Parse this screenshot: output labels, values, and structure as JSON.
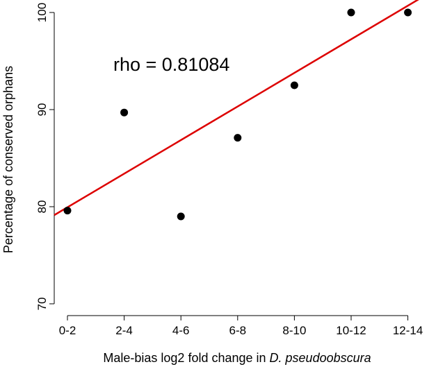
{
  "chart_data": {
    "type": "scatter",
    "title": "",
    "xlabel_prefix": "Male-bias log2 fold change in ",
    "xlabel_italic": "D. pseudoobscura",
    "ylabel": "Percentage of conserved orphans",
    "categories": [
      "0-2",
      "2-4",
      "4-6",
      "6-8",
      "8-10",
      "10-12",
      "12-14"
    ],
    "values": [
      79.6,
      89.7,
      79.0,
      87.1,
      92.5,
      100.0,
      100.0
    ],
    "ylim": [
      70,
      100
    ],
    "yticks": [
      70,
      80,
      90,
      100
    ],
    "fit_line": {
      "intercept": 79.94,
      "slope": 3.46,
      "color": "#dd0000"
    },
    "annotation": "rho = 0.81084",
    "point_color": "#000000",
    "grid": false,
    "legend": "none"
  }
}
